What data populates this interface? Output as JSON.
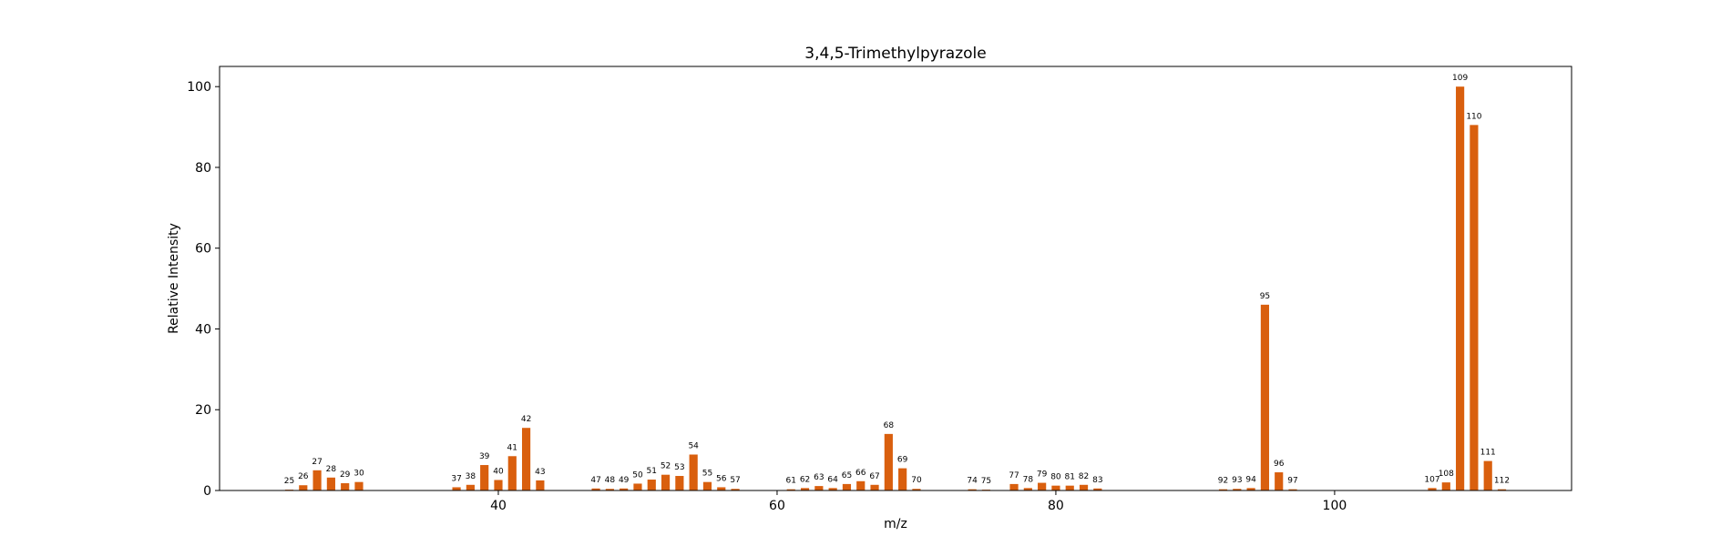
{
  "chart_data": {
    "type": "bar",
    "title": "3,4,5-Trimethylpyrazole",
    "xlabel": "m/z",
    "ylabel": "Relative Intensity",
    "xlim": [
      20,
      117
    ],
    "ylim": [
      0,
      105
    ],
    "xticks": [
      40,
      60,
      80,
      100
    ],
    "yticks": [
      0,
      20,
      40,
      60,
      80,
      100
    ],
    "bar_color": "#d95f0e",
    "grid": false,
    "legend": "none",
    "points": [
      {
        "mz": 25,
        "intensity": 0.2
      },
      {
        "mz": 26,
        "intensity": 1.3
      },
      {
        "mz": 27,
        "intensity": 5.0
      },
      {
        "mz": 28,
        "intensity": 3.2
      },
      {
        "mz": 29,
        "intensity": 1.8
      },
      {
        "mz": 30,
        "intensity": 2.1
      },
      {
        "mz": 37,
        "intensity": 0.8
      },
      {
        "mz": 38,
        "intensity": 1.4
      },
      {
        "mz": 39,
        "intensity": 6.3
      },
      {
        "mz": 40,
        "intensity": 2.6
      },
      {
        "mz": 41,
        "intensity": 8.5
      },
      {
        "mz": 42,
        "intensity": 15.5
      },
      {
        "mz": 43,
        "intensity": 2.5
      },
      {
        "mz": 47,
        "intensity": 0.5
      },
      {
        "mz": 48,
        "intensity": 0.4
      },
      {
        "mz": 49,
        "intensity": 0.5
      },
      {
        "mz": 50,
        "intensity": 1.7
      },
      {
        "mz": 51,
        "intensity": 2.7
      },
      {
        "mz": 52,
        "intensity": 3.9
      },
      {
        "mz": 53,
        "intensity": 3.6
      },
      {
        "mz": 54,
        "intensity": 8.9
      },
      {
        "mz": 55,
        "intensity": 2.1
      },
      {
        "mz": 56,
        "intensity": 0.8
      },
      {
        "mz": 57,
        "intensity": 0.4
      },
      {
        "mz": 61,
        "intensity": 0.3
      },
      {
        "mz": 62,
        "intensity": 0.6
      },
      {
        "mz": 63,
        "intensity": 1.1
      },
      {
        "mz": 64,
        "intensity": 0.6
      },
      {
        "mz": 65,
        "intensity": 1.6
      },
      {
        "mz": 66,
        "intensity": 2.3
      },
      {
        "mz": 67,
        "intensity": 1.4
      },
      {
        "mz": 68,
        "intensity": 14.0
      },
      {
        "mz": 69,
        "intensity": 5.5
      },
      {
        "mz": 70,
        "intensity": 0.4
      },
      {
        "mz": 74,
        "intensity": 0.3
      },
      {
        "mz": 75,
        "intensity": 0.2
      },
      {
        "mz": 77,
        "intensity": 1.6
      },
      {
        "mz": 78,
        "intensity": 0.6
      },
      {
        "mz": 79,
        "intensity": 1.9
      },
      {
        "mz": 80,
        "intensity": 1.2
      },
      {
        "mz": 81,
        "intensity": 1.2
      },
      {
        "mz": 82,
        "intensity": 1.4
      },
      {
        "mz": 83,
        "intensity": 0.5
      },
      {
        "mz": 92,
        "intensity": 0.3
      },
      {
        "mz": 93,
        "intensity": 0.4
      },
      {
        "mz": 94,
        "intensity": 0.6
      },
      {
        "mz": 95,
        "intensity": 46.0
      },
      {
        "mz": 96,
        "intensity": 4.5
      },
      {
        "mz": 97,
        "intensity": 0.3
      },
      {
        "mz": 107,
        "intensity": 0.6
      },
      {
        "mz": 108,
        "intensity": 2.0
      },
      {
        "mz": 109,
        "intensity": 100.0
      },
      {
        "mz": 110,
        "intensity": 90.5
      },
      {
        "mz": 111,
        "intensity": 7.3
      },
      {
        "mz": 112,
        "intensity": 0.3
      }
    ]
  }
}
